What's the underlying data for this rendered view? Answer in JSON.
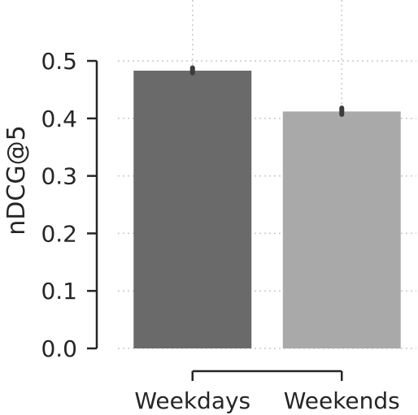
{
  "chart_data": {
    "type": "bar",
    "title": "",
    "xlabel": "",
    "ylabel": "nDCG@5",
    "categories": [
      "Weekdays",
      "Weekends"
    ],
    "values": [
      0.483,
      0.412
    ],
    "error_bars": [
      [
        0.479,
        0.488
      ],
      [
        0.407,
        0.418
      ]
    ],
    "bar_colors": [
      "#6a6a6a",
      "#a9a9a9"
    ],
    "ylim": [
      0.0,
      0.5
    ],
    "yticks": [
      "0.0",
      "0.1",
      "0.2",
      "0.3",
      "0.4",
      "0.5"
    ],
    "grid": true,
    "legend": "none"
  }
}
